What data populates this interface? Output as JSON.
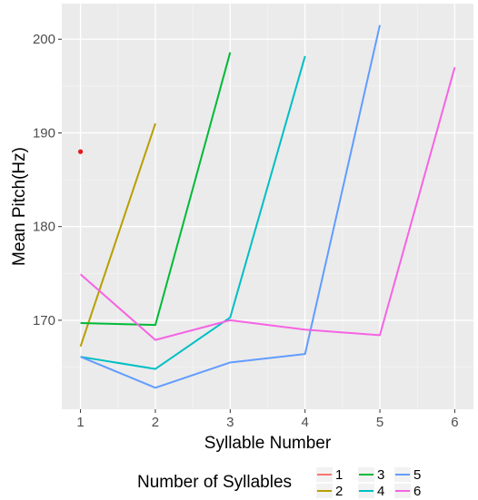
{
  "chart_data": {
    "type": "line",
    "title": "",
    "xlabel": "Syllable Number",
    "ylabel": "Mean Pitch(Hz)",
    "xlim": [
      0.75,
      6.25
    ],
    "ylim": [
      160.5,
      203.8
    ],
    "x_ticks": [
      1,
      2,
      3,
      4,
      5,
      6
    ],
    "y_ticks": [
      170,
      180,
      190,
      200
    ],
    "grid": true,
    "legend": {
      "title": "Number of Syllables",
      "position": "bottom",
      "entries": [
        "1",
        "2",
        "3",
        "4",
        "5",
        "6"
      ]
    },
    "series": [
      {
        "name": "1",
        "color": "#F8766D",
        "x": [
          1
        ],
        "y": [
          188.0
        ],
        "point": true
      },
      {
        "name": "2",
        "color": "#B79F00",
        "x": [
          1,
          2
        ],
        "y": [
          167.2,
          191.0
        ]
      },
      {
        "name": "3",
        "color": "#00BA38",
        "x": [
          1,
          2,
          3
        ],
        "y": [
          169.7,
          169.5,
          198.6
        ]
      },
      {
        "name": "4",
        "color": "#00BFC4",
        "x": [
          1,
          2,
          3,
          4
        ],
        "y": [
          166.1,
          164.8,
          170.3,
          198.2
        ]
      },
      {
        "name": "5",
        "color": "#619CFF",
        "x": [
          1,
          2,
          3,
          4,
          5
        ],
        "y": [
          166.1,
          162.8,
          165.5,
          166.4,
          201.5
        ]
      },
      {
        "name": "6",
        "color": "#F564E3",
        "x": [
          1,
          2,
          3,
          4,
          5,
          6
        ],
        "y": [
          174.9,
          167.9,
          170.0,
          169.0,
          168.4,
          197.0
        ]
      }
    ],
    "point_color": "#E41A1C"
  }
}
